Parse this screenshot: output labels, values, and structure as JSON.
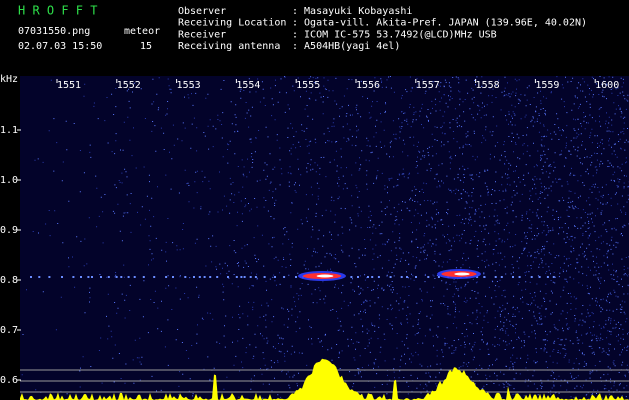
{
  "header": {
    "program": "H R O F F T",
    "file": "07031550.png",
    "meteor_label": "meteor",
    "timestamp": "02.07.03 15:50",
    "meteor_count": "15",
    "fields": [
      {
        "label": "Observer",
        "value": ": Masayuki Kobayashi"
      },
      {
        "label": "Receiving Location",
        "value": ": Ogata-vill. Akita-Pref. JAPAN (139.96E, 40.02N)"
      },
      {
        "label": "Receiver",
        "value": ": ICOM IC-575 53.7492(@LCD)MHz USB"
      },
      {
        "label": "Receiving antenna",
        "value": ": A504HB(yagi 4el)"
      }
    ]
  },
  "spectrogram": {
    "y_unit": "kHz",
    "x_labels": [
      "1551",
      "1552",
      "1553",
      "1554",
      "1555",
      "1556",
      "1557",
      "1558",
      "1559",
      "1600"
    ],
    "y_labels": [
      "1.1",
      "1.0",
      "0.9",
      "0.8",
      "0.7",
      "0.6"
    ]
  }
}
